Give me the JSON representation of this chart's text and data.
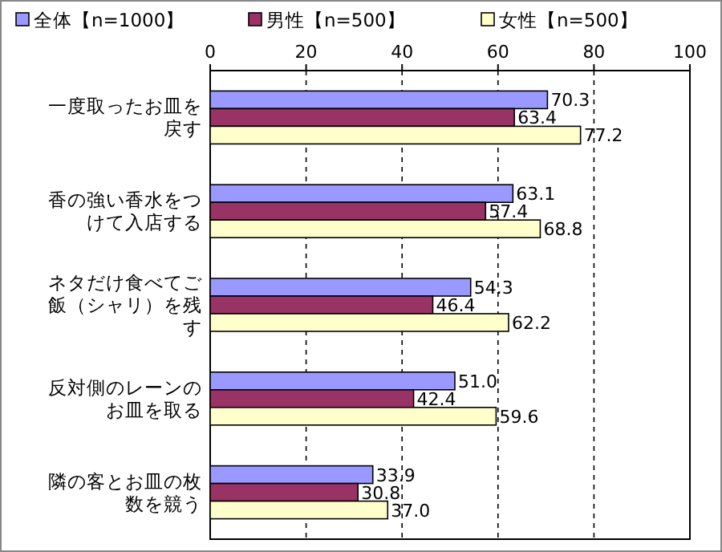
{
  "chart_data": {
    "type": "bar",
    "orientation": "horizontal",
    "categories": [
      "一度取ったお皿を戻す",
      "香の強い香水をつけて入店する",
      "ネタだけ食べてご飯（シャリ）を残す",
      "反対側のレーンのお皿を取る",
      "隣の客とお皿の枚数を競う"
    ],
    "series": [
      {
        "name": "全体【n=1000】",
        "color": "#9999ff",
        "values": [
          70.3,
          63.1,
          54.3,
          51.0,
          33.9
        ],
        "value_labels": [
          "70.3",
          "63.1",
          "54.3",
          "51.0",
          "33.9"
        ]
      },
      {
        "name": "男性【n=500】",
        "color": "#993366",
        "values": [
          63.4,
          57.4,
          46.4,
          42.4,
          30.8
        ],
        "value_labels": [
          "63.4",
          "57.4",
          "46.4",
          "42.4",
          "30.8"
        ]
      },
      {
        "name": "女性【n=500】",
        "color": "#ffffcc",
        "values": [
          77.2,
          68.8,
          62.2,
          59.6,
          37.0
        ],
        "value_labels": [
          "77.2",
          "68.8",
          "62.2",
          "59.6",
          "37.0"
        ]
      }
    ],
    "xlim": [
      0,
      100
    ],
    "xticks": [
      0,
      20,
      40,
      60,
      80,
      100
    ],
    "grid": "x",
    "legend": "top"
  }
}
